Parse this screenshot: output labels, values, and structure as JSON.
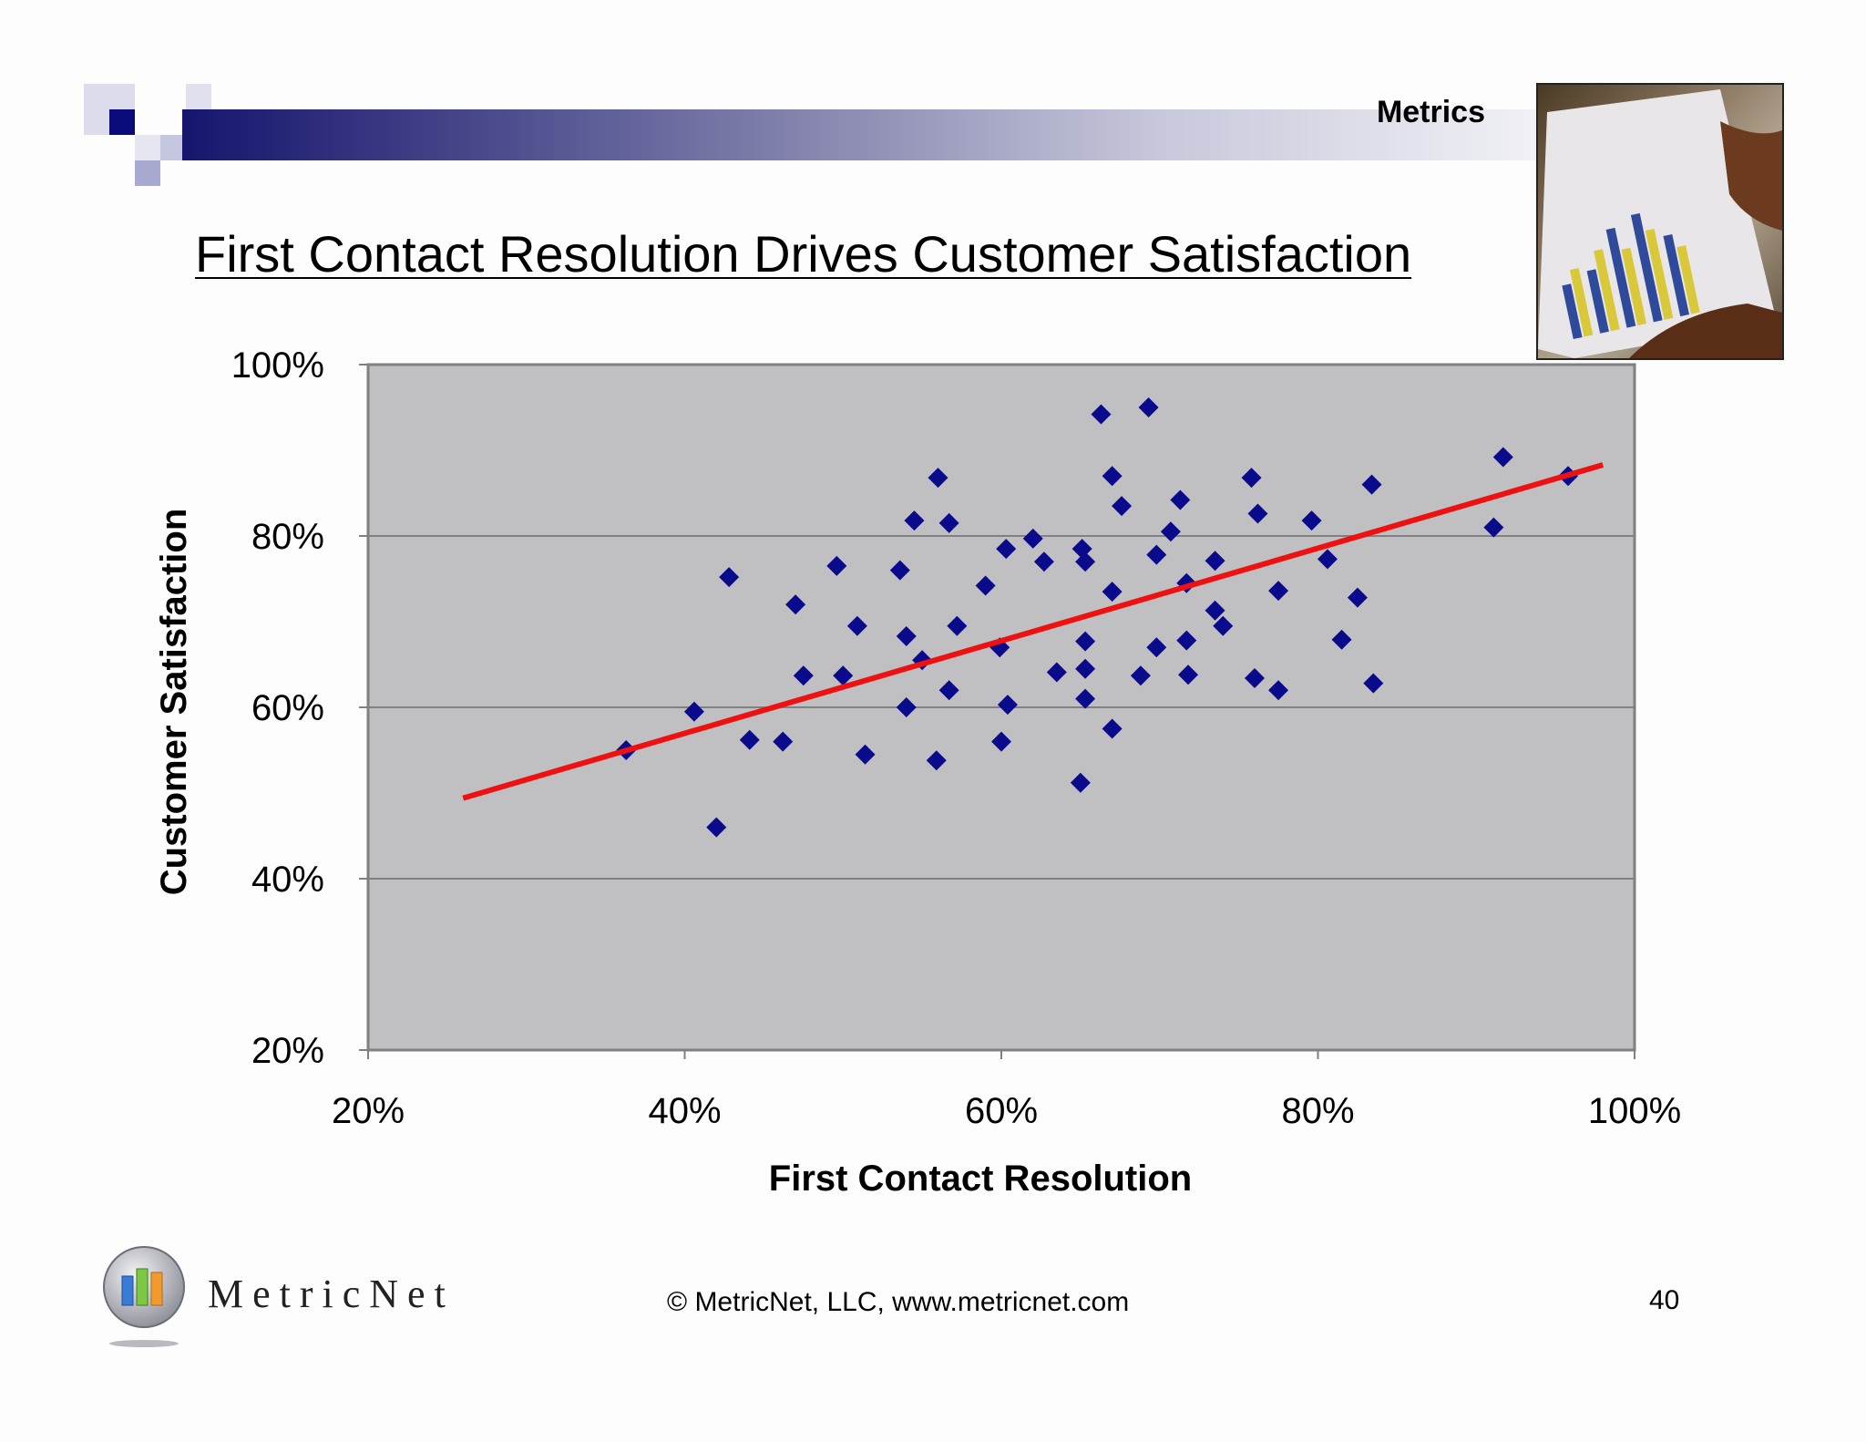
{
  "header": {
    "tag": "Metrics"
  },
  "slide": {
    "title": "First Contact Resolution Drives Customer Satisfaction"
  },
  "colors": {
    "plot_background": "#c0bfc1",
    "marker": "#0a0a8c",
    "trendline": "#ee1111",
    "brand_navy": "#15156e"
  },
  "chart_data": {
    "type": "scatter",
    "xlabel": "First Contact Resolution",
    "ylabel": "Customer Satisfaction",
    "xlim": [
      20,
      100
    ],
    "ylim": [
      20,
      100
    ],
    "x_ticks": [
      "20%",
      "40%",
      "60%",
      "80%",
      "100%"
    ],
    "y_ticks": [
      "20%",
      "40%",
      "60%",
      "80%",
      "100%"
    ],
    "grid": "horizontal",
    "marker": "diamond",
    "points": [
      [
        36.3,
        55
      ],
      [
        40.6,
        59.5
      ],
      [
        42.0,
        46
      ],
      [
        42.8,
        75.2
      ],
      [
        44.1,
        56.2
      ],
      [
        46.2,
        56
      ],
      [
        47.0,
        72
      ],
      [
        47.5,
        63.7
      ],
      [
        49.6,
        76.5
      ],
      [
        50.0,
        63.7
      ],
      [
        50.9,
        69.5
      ],
      [
        51.4,
        54.5
      ],
      [
        53.6,
        76
      ],
      [
        54.0,
        68.3
      ],
      [
        54.0,
        60
      ],
      [
        54.5,
        81.8
      ],
      [
        55.0,
        65.5
      ],
      [
        55.9,
        53.8
      ],
      [
        56.0,
        86.8
      ],
      [
        56.7,
        81.5
      ],
      [
        56.7,
        62
      ],
      [
        57.2,
        69.5
      ],
      [
        59.0,
        74.2
      ],
      [
        59.9,
        67
      ],
      [
        60.0,
        56
      ],
      [
        60.3,
        78.5
      ],
      [
        60.4,
        60.3
      ],
      [
        62.0,
        79.7
      ],
      [
        62.7,
        77
      ],
      [
        63.5,
        64.1
      ],
      [
        65.0,
        51.2
      ],
      [
        65.1,
        78.5
      ],
      [
        65.3,
        61
      ],
      [
        65.3,
        64.5
      ],
      [
        65.3,
        67.7
      ],
      [
        65.3,
        77
      ],
      [
        66.3,
        94.2
      ],
      [
        67.0,
        87
      ],
      [
        67.0,
        73.5
      ],
      [
        67.0,
        57.5
      ],
      [
        67.6,
        83.5
      ],
      [
        68.8,
        63.7
      ],
      [
        69.3,
        95
      ],
      [
        69.8,
        77.8
      ],
      [
        69.8,
        67
      ],
      [
        70.7,
        80.5
      ],
      [
        71.3,
        84.2
      ],
      [
        71.7,
        74.5
      ],
      [
        71.7,
        67.8
      ],
      [
        71.8,
        63.8
      ],
      [
        73.5,
        77.1
      ],
      [
        73.5,
        71.3
      ],
      [
        74.0,
        69.5
      ],
      [
        75.8,
        86.8
      ],
      [
        76.0,
        63.4
      ],
      [
        76.2,
        82.6
      ],
      [
        77.5,
        73.6
      ],
      [
        77.5,
        62
      ],
      [
        79.6,
        81.8
      ],
      [
        80.6,
        77.3
      ],
      [
        81.5,
        67.9
      ],
      [
        82.5,
        72.8
      ],
      [
        83.4,
        86
      ],
      [
        83.5,
        62.8
      ],
      [
        91.1,
        81
      ],
      [
        91.7,
        89.2
      ],
      [
        95.8,
        87
      ]
    ],
    "trendline": {
      "x": [
        26,
        98
      ],
      "y": [
        49.4,
        88.3
      ]
    }
  },
  "footer": {
    "logo_text": "MetricNet",
    "copyright": "© MetricNet, LLC, www.metricnet.com",
    "page_number": "40"
  }
}
